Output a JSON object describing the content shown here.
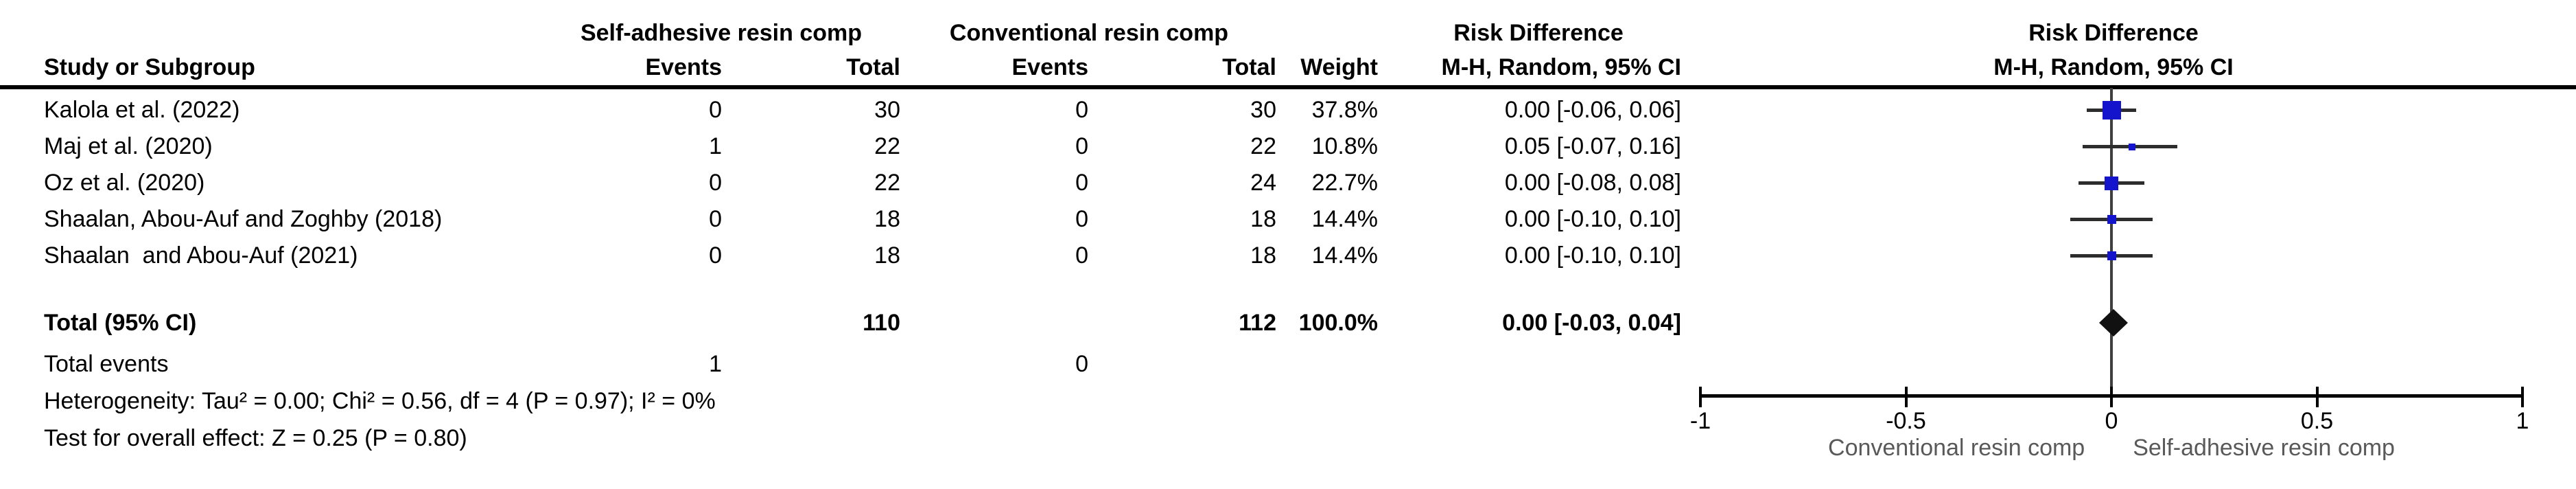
{
  "table": {
    "left_header": "Study or Subgroup",
    "group1": "Self-adhesive resin comp",
    "group2": "Conventional resin comp",
    "col_events": "Events",
    "col_total": "Total",
    "col_weight": "Weight",
    "effect_label": "Risk Difference",
    "effect_sublabel": "M-H, Random, 95% CI",
    "studies": [
      {
        "label": "Kalola et al. (2022)",
        "e1": "0",
        "t1": "30",
        "e2": "0",
        "t2": "30",
        "weight": "37.8%",
        "ci": "0.00 [-0.06, 0.06]"
      },
      {
        "label": "Maj et al. (2020)",
        "e1": "1",
        "t1": "22",
        "e2": "0",
        "t2": "22",
        "weight": "10.8%",
        "ci": "0.05 [-0.07, 0.16]"
      },
      {
        "label": "Oz et al. (2020)",
        "e1": "0",
        "t1": "22",
        "e2": "0",
        "t2": "24",
        "weight": "22.7%",
        "ci": "0.00 [-0.08, 0.08]"
      },
      {
        "label": "Shaalan, Abou-Auf and Zoghby (2018)",
        "e1": "0",
        "t1": "18",
        "e2": "0",
        "t2": "18",
        "weight": "14.4%",
        "ci": "0.00 [-0.10, 0.10]"
      },
      {
        "label": "Shaalan  and Abou-Auf (2021)",
        "e1": "0",
        "t1": "18",
        "e2": "0",
        "t2": "18",
        "weight": "14.4%",
        "ci": "0.00 [-0.10, 0.10]"
      }
    ],
    "total": {
      "label": "Total (95% CI)",
      "t1": "110",
      "t2": "112",
      "weight": "100.0%",
      "ci": "0.00 [-0.03, 0.04]"
    },
    "total_events": {
      "label": "Total events",
      "e1": "1",
      "e2": "0"
    },
    "heterogeneity": "Heterogeneity: Tau² = 0.00; Chi² = 0.56, df = 4 (P = 0.97); I² = 0%",
    "overall_effect": "Test for overall effect: Z = 0.25 (P = 0.80)"
  },
  "chart_data": {
    "type": "forest",
    "effect_measure": "Risk Difference",
    "method": "M-H, Random, 95% CI",
    "axis": {
      "min": -1,
      "max": 1,
      "ticks": [
        -1,
        -0.5,
        0,
        0.5,
        1
      ],
      "left_caption": "Conventional resin comp",
      "right_caption": "Self-adhesive resin comp"
    },
    "studies": [
      {
        "label": "Kalola et al. (2022)",
        "estimate": 0.0,
        "ci_low": -0.06,
        "ci_high": 0.06,
        "weight_pct": 37.8,
        "marker_px": 27
      },
      {
        "label": "Maj et al. (2020)",
        "estimate": 0.05,
        "ci_low": -0.07,
        "ci_high": 0.16,
        "weight_pct": 10.8,
        "marker_px": 10
      },
      {
        "label": "Oz et al. (2020)",
        "estimate": 0.0,
        "ci_low": -0.08,
        "ci_high": 0.08,
        "weight_pct": 22.7,
        "marker_px": 20
      },
      {
        "label": "Shaalan, Abou-Auf and Zoghby (2018)",
        "estimate": 0.0,
        "ci_low": -0.1,
        "ci_high": 0.1,
        "weight_pct": 14.4,
        "marker_px": 13
      },
      {
        "label": "Shaalan  and Abou-Auf (2021)",
        "estimate": 0.0,
        "ci_low": -0.1,
        "ci_high": 0.1,
        "weight_pct": 14.4,
        "marker_px": 13
      }
    ],
    "total": {
      "estimate": 0.0,
      "ci_low": -0.03,
      "ci_high": 0.04,
      "weight_pct": 100.0
    }
  },
  "colors": {
    "marker_blue": "#1414cc",
    "diamond_black": "#111111",
    "ci_line": "#2d2d2d",
    "zero_line": "#3f3f3f",
    "axis_black": "#000000",
    "caption_gray": "#595959"
  }
}
